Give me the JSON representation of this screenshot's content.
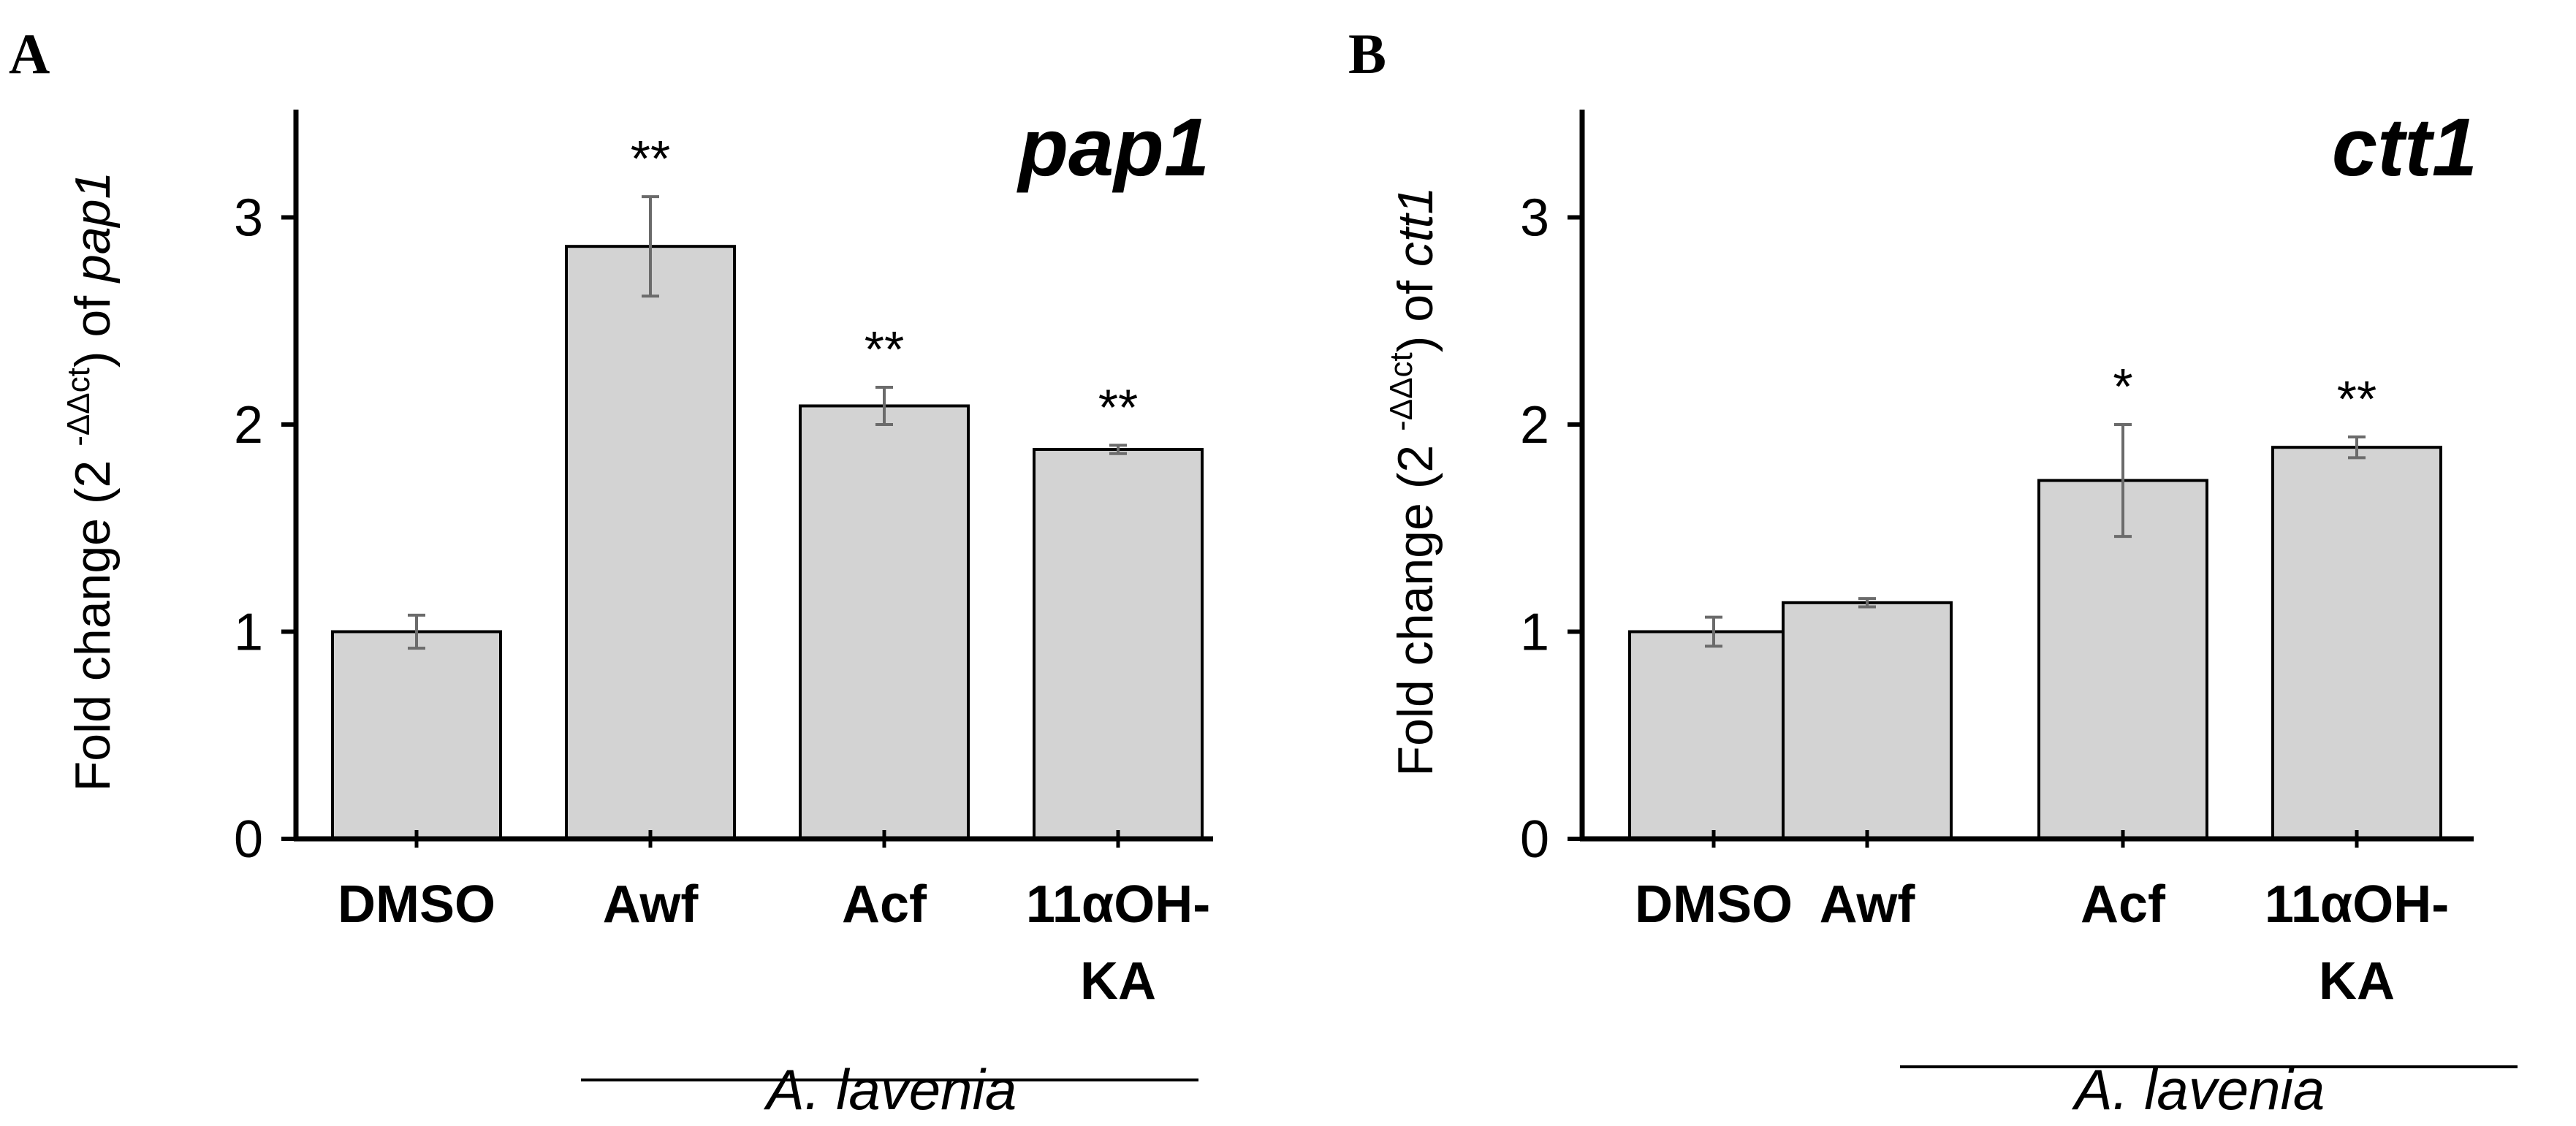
{
  "chart_data": [
    {
      "type": "bar",
      "panel_label": "A",
      "title": "pap1",
      "ylabel": {
        "pre": "Fold change (2 ",
        "sup": "-ΔΔct",
        "post": ") of ",
        "gene": "pap1"
      },
      "categories": [
        "DMSO",
        "Awf",
        "Acf",
        "11αOH-KA"
      ],
      "category_lines": [
        [
          "DMSO"
        ],
        [
          "Awf"
        ],
        [
          "Acf"
        ],
        [
          "11αOH-",
          "KA"
        ]
      ],
      "values": [
        1.0,
        2.86,
        2.09,
        1.88
      ],
      "errors": [
        0.08,
        0.24,
        0.09,
        0.02
      ],
      "significance": [
        "",
        "**",
        "**",
        "**"
      ],
      "ylim": [
        0,
        3.5
      ],
      "yticks": [
        0,
        1,
        2,
        3
      ],
      "group_label": "A. lavenia",
      "bar_color": "#d3d3d3"
    },
    {
      "type": "bar",
      "panel_label": "B",
      "title": "ctt1",
      "ylabel": {
        "pre": "Fold change (2 ",
        "sup": "-ΔΔct",
        "post": ") of ",
        "gene": "ctt1"
      },
      "categories": [
        "DMSO",
        "Awf",
        "Acf",
        "11αOH-KA"
      ],
      "category_lines": [
        [
          "DMSO"
        ],
        [
          "Awf"
        ],
        [
          "Acf"
        ],
        [
          "11αOH-",
          "KA"
        ]
      ],
      "values": [
        1.0,
        1.14,
        1.73,
        1.89
      ],
      "errors": [
        0.07,
        0.02,
        0.27,
        0.05
      ],
      "significance": [
        "",
        "",
        "*",
        "**"
      ],
      "ylim": [
        0,
        3.5
      ],
      "yticks": [
        0,
        1,
        2,
        3
      ],
      "group_label": "A. lavenia",
      "bar_color": "#d3d3d3"
    }
  ]
}
